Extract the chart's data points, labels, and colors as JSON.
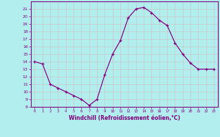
{
  "x": [
    0,
    1,
    2,
    3,
    4,
    5,
    6,
    7,
    8,
    9,
    10,
    11,
    12,
    13,
    14,
    15,
    16,
    17,
    18,
    19,
    20,
    21,
    22,
    23
  ],
  "y": [
    14,
    13.7,
    11,
    10.5,
    10,
    9.5,
    9,
    8.2,
    9,
    12.3,
    15,
    16.8,
    19.8,
    21,
    21.2,
    20.5,
    19.5,
    18.8,
    16.5,
    15,
    13.8,
    13,
    13,
    13
  ],
  "line_color": "#800080",
  "marker": "+",
  "marker_color": "#800080",
  "bg_color": "#b2eeee",
  "grid_color": "#c8c8c8",
  "xlabel": "Windchill (Refroidissement éolien,°C)",
  "xlabel_color": "#800080",
  "tick_color": "#800080",
  "ylim": [
    8,
    22
  ],
  "yticks": [
    8,
    9,
    10,
    11,
    12,
    13,
    14,
    15,
    16,
    17,
    18,
    19,
    20,
    21
  ],
  "xlim": [
    -0.5,
    23.5
  ],
  "xticks": [
    0,
    1,
    2,
    3,
    4,
    5,
    6,
    7,
    8,
    9,
    10,
    11,
    12,
    13,
    14,
    15,
    16,
    17,
    18,
    19,
    20,
    21,
    22,
    23
  ]
}
